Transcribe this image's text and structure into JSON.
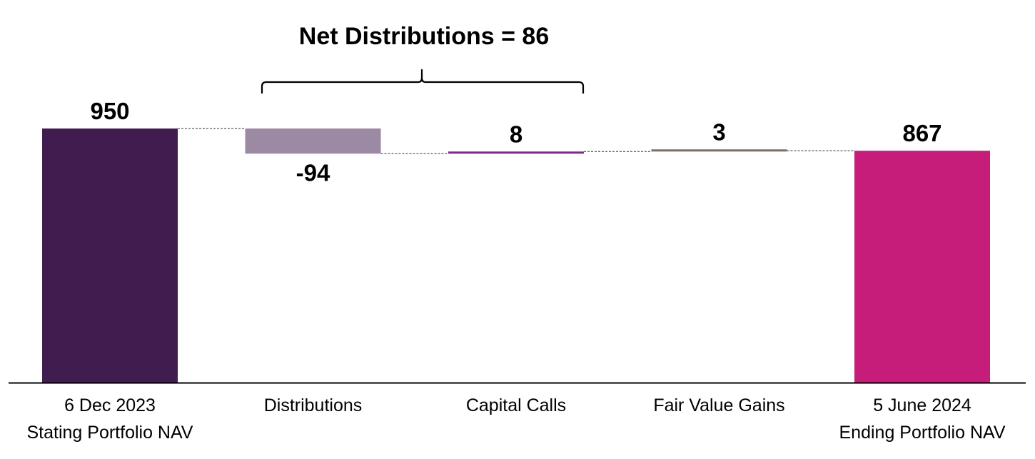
{
  "chart_data": {
    "type": "waterfall",
    "title": "",
    "xlabel": "",
    "ylabel": "",
    "ylim": [
      0,
      1000
    ],
    "grid": false,
    "categories": [
      [
        "6 Dec 2023",
        "Stating Portfolio NAV"
      ],
      [
        "Distributions"
      ],
      [
        "Capital Calls"
      ],
      [
        "Fair Value Gains"
      ],
      [
        "5 June 2024",
        "Ending Portfolio NAV"
      ]
    ],
    "values": [
      950,
      -94,
      8,
      3,
      867
    ],
    "bar_kinds": [
      "total",
      "delta",
      "delta",
      "delta",
      "total"
    ],
    "data_labels": [
      "950",
      "-94",
      "8",
      "3",
      "867"
    ],
    "colors": [
      "#401c4f",
      "#9c89a3",
      "#7b2b87",
      "#7a715c",
      "#c71d7a"
    ],
    "annotation": {
      "text": "Net Distributions = 86",
      "spans_categories": [
        "Distributions",
        "Capital Calls"
      ]
    }
  }
}
